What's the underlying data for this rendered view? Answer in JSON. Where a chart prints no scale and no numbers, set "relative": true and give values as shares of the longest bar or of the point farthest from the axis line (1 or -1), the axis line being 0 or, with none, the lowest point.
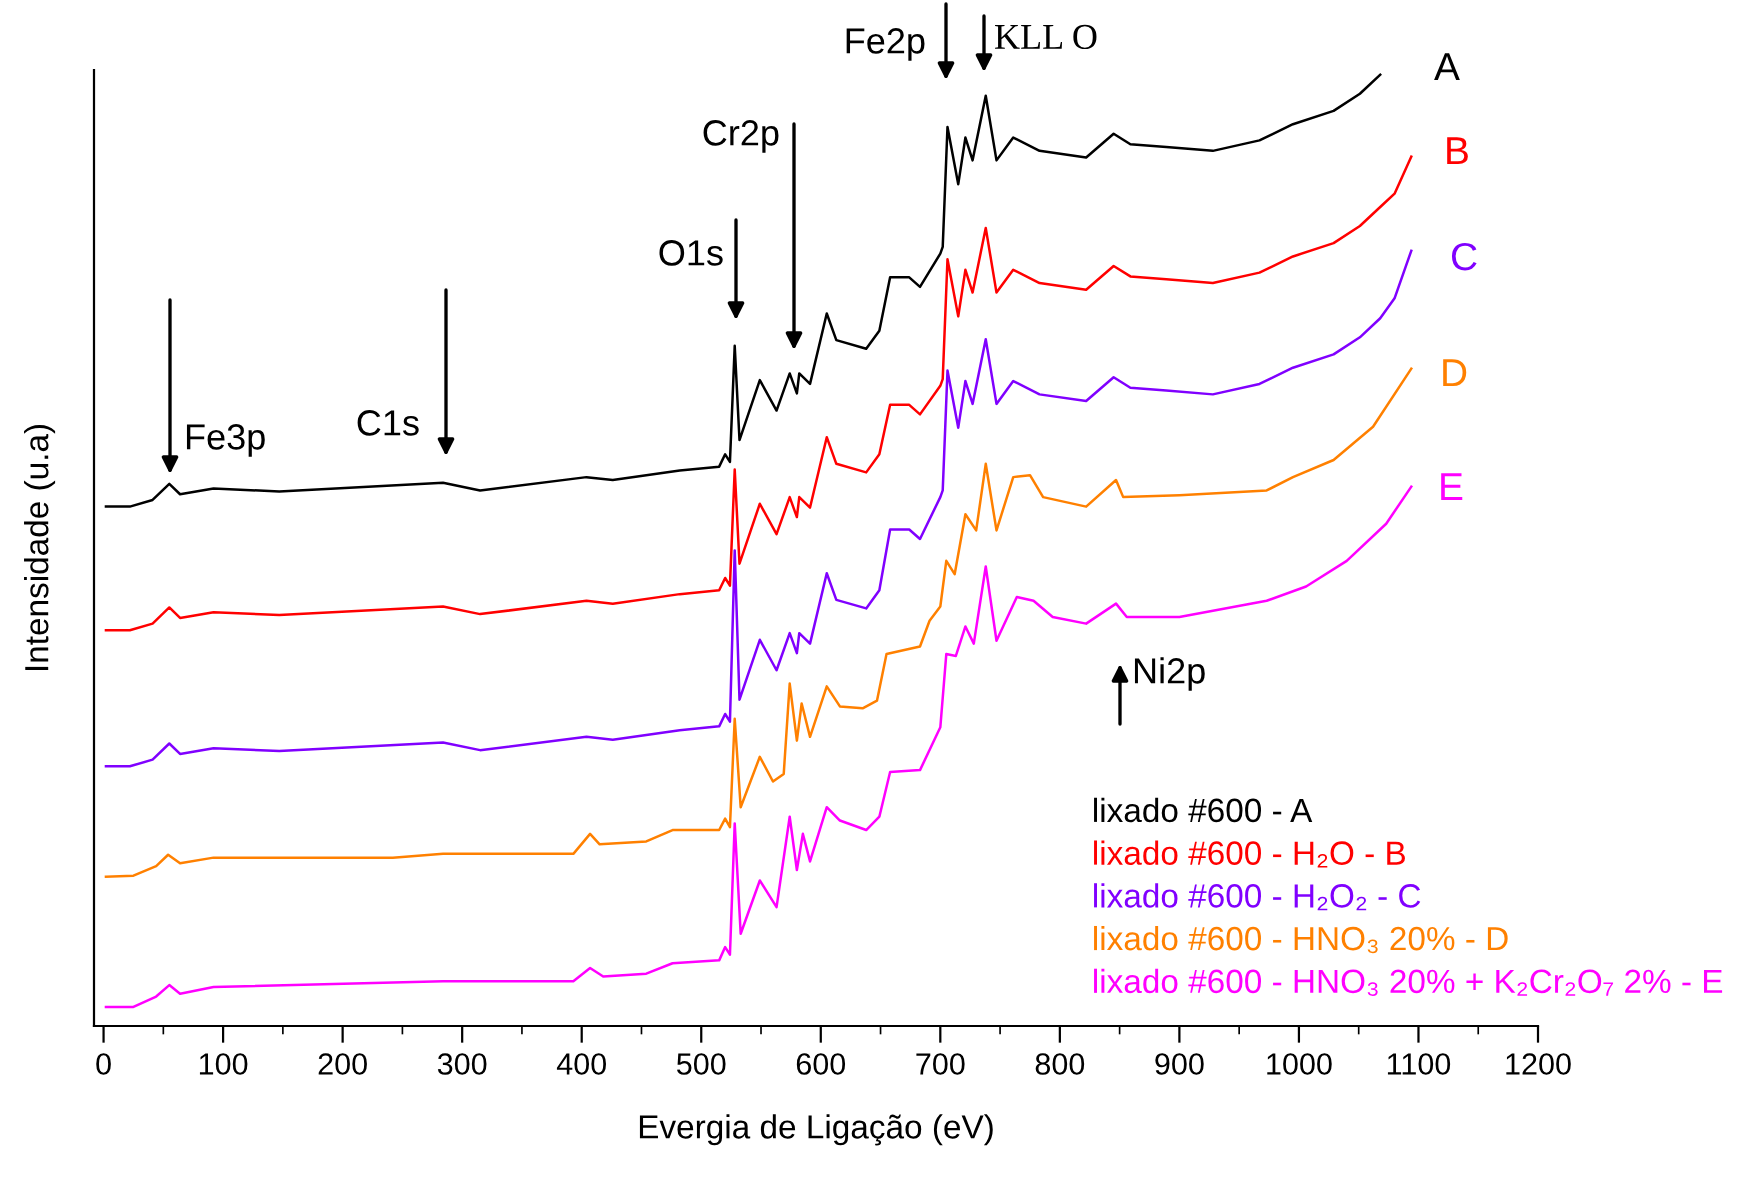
{
  "chart_data": {
    "type": "line",
    "relative": true,
    "xlabel": "Evergia de Ligação (eV)",
    "ylabel": "Intensidade (u.a)",
    "xlim": [
      -8,
      1200
    ],
    "xticks": [
      0,
      {
        "value": 50,
        "label": null
      },
      100,
      {
        "value": 150,
        "label": null
      },
      200,
      {
        "value": 250,
        "label": null
      },
      300,
      {
        "value": 350,
        "label": null
      },
      400,
      {
        "value": 450,
        "label": null
      },
      500,
      {
        "value": 550,
        "label": null
      },
      600,
      {
        "value": 650,
        "label": null
      },
      700,
      {
        "value": 750,
        "label": null
      },
      800,
      {
        "value": 850,
        "label": null
      },
      900,
      {
        "value": 950,
        "label": null
      },
      1000,
      {
        "value": 1050,
        "label": null
      },
      1100,
      {
        "value": 1150,
        "label": null
      },
      1200
    ],
    "grid": false,
    "legend": "bottom right",
    "marker": "none",
    "line_style": "solid",
    "series": [
      {
        "name": "lixado #600 - A",
        "color": "#000000",
        "x": [
          2,
          22,
          41,
          55,
          64,
          92,
          147,
          284,
          315,
          404,
          426,
          482,
          515,
          520,
          524,
          528,
          532,
          549,
          563,
          574,
          580,
          582,
          591,
          605,
          613,
          638,
          649,
          658,
          674,
          683,
          700,
          702,
          706,
          715,
          721,
          727,
          738,
          747,
          761,
          783,
          822,
          845,
          859,
          889,
          928,
          967,
          995,
          1029,
          1051,
          1068
        ],
        "values": [
          0.546,
          0.546,
          0.553,
          0.57,
          0.559,
          0.565,
          0.562,
          0.571,
          0.563,
          0.577,
          0.574,
          0.584,
          0.588,
          0.601,
          0.593,
          0.715,
          0.616,
          0.679,
          0.647,
          0.686,
          0.665,
          0.686,
          0.675,
          0.749,
          0.721,
          0.712,
          0.731,
          0.787,
          0.787,
          0.777,
          0.812,
          0.819,
          0.945,
          0.885,
          0.934,
          0.91,
          0.978,
          0.91,
          0.934,
          0.92,
          0.913,
          0.938,
          0.927,
          0.924,
          0.92,
          0.931,
          0.948,
          0.962,
          0.98,
          1.0
        ]
      },
      {
        "name": "lixado #600 - H₂O - B",
        "color": "#ff0000",
        "x": [
          2,
          22,
          41,
          55,
          64,
          92,
          147,
          284,
          315,
          404,
          426,
          482,
          515,
          520,
          524,
          528,
          532,
          549,
          563,
          574,
          580,
          582,
          591,
          605,
          613,
          638,
          649,
          658,
          674,
          683,
          700,
          702,
          706,
          715,
          721,
          727,
          738,
          747,
          761,
          783,
          822,
          845,
          859,
          889,
          928,
          967,
          995,
          1029,
          1051,
          1068,
          1080,
          1094
        ],
        "values": [
          0.416,
          0.416,
          0.423,
          0.44,
          0.429,
          0.435,
          0.432,
          0.441,
          0.433,
          0.447,
          0.444,
          0.454,
          0.458,
          0.471,
          0.463,
          0.585,
          0.486,
          0.549,
          0.517,
          0.556,
          0.535,
          0.556,
          0.545,
          0.619,
          0.591,
          0.582,
          0.601,
          0.653,
          0.653,
          0.643,
          0.673,
          0.68,
          0.806,
          0.746,
          0.795,
          0.771,
          0.839,
          0.771,
          0.795,
          0.781,
          0.774,
          0.799,
          0.788,
          0.785,
          0.781,
          0.792,
          0.809,
          0.823,
          0.841,
          0.861,
          0.875,
          0.914
        ]
      },
      {
        "name": "lixado #600 - H₂O₂ - C",
        "color": "#8000ff",
        "x": [
          2,
          22,
          41,
          55,
          64,
          92,
          147,
          284,
          315,
          404,
          426,
          482,
          515,
          520,
          524,
          528,
          532,
          549,
          563,
          574,
          580,
          582,
          591,
          605,
          613,
          638,
          649,
          658,
          674,
          683,
          700,
          702,
          706,
          715,
          721,
          727,
          738,
          747,
          761,
          783,
          822,
          845,
          859,
          889,
          928,
          967,
          995,
          1029,
          1051,
          1068,
          1080,
          1094
        ],
        "values": [
          0.273,
          0.273,
          0.28,
          0.297,
          0.286,
          0.292,
          0.289,
          0.298,
          0.29,
          0.304,
          0.301,
          0.311,
          0.315,
          0.328,
          0.32,
          0.5,
          0.343,
          0.406,
          0.374,
          0.413,
          0.392,
          0.413,
          0.402,
          0.476,
          0.448,
          0.439,
          0.458,
          0.522,
          0.522,
          0.512,
          0.556,
          0.563,
          0.689,
          0.629,
          0.678,
          0.654,
          0.722,
          0.654,
          0.678,
          0.664,
          0.657,
          0.682,
          0.671,
          0.668,
          0.664,
          0.675,
          0.692,
          0.706,
          0.724,
          0.744,
          0.765,
          0.815
        ]
      },
      {
        "name": "lixado #600 - HNO₃ 20% - D",
        "color": "#ff8000",
        "x": [
          2,
          25,
          44,
          54,
          64,
          92,
          242,
          284,
          393,
          407,
          415,
          454,
          476,
          515,
          520,
          524,
          528,
          533,
          549,
          560,
          569,
          574,
          580,
          584,
          591,
          605,
          616,
          635,
          647,
          655,
          683,
          691,
          700,
          705,
          712,
          721,
          730,
          738,
          747,
          761,
          775,
          786,
          822,
          847,
          853,
          900,
          973,
          995,
          1029,
          1062,
          1094
        ],
        "values": [
          0.157,
          0.158,
          0.168,
          0.18,
          0.171,
          0.177,
          0.177,
          0.181,
          0.181,
          0.202,
          0.191,
          0.194,
          0.206,
          0.206,
          0.218,
          0.209,
          0.323,
          0.23,
          0.283,
          0.257,
          0.265,
          0.36,
          0.3,
          0.339,
          0.304,
          0.357,
          0.336,
          0.334,
          0.342,
          0.391,
          0.399,
          0.426,
          0.441,
          0.489,
          0.475,
          0.538,
          0.521,
          0.591,
          0.521,
          0.577,
          0.579,
          0.556,
          0.546,
          0.574,
          0.556,
          0.558,
          0.563,
          0.577,
          0.595,
          0.63,
          0.691
        ]
      },
      {
        "name": "lixado #600 - HNO₃ 20% + K₂Cr₂O₇ 2% - E",
        "color": "#ff00ff",
        "x": [
          2,
          25,
          44,
          55,
          64,
          92,
          284,
          393,
          407,
          418,
          454,
          476,
          515,
          520,
          524,
          528,
          533,
          549,
          563,
          574,
          580,
          585,
          591,
          605,
          616,
          638,
          649,
          658,
          683,
          700,
          705,
          713,
          721,
          728,
          738,
          747,
          764,
          778,
          794,
          822,
          847,
          856,
          900,
          973,
          1006,
          1040,
          1073,
          1094
        ],
        "values": [
          0.02,
          0.02,
          0.031,
          0.043,
          0.034,
          0.041,
          0.047,
          0.047,
          0.061,
          0.052,
          0.055,
          0.066,
          0.069,
          0.083,
          0.075,
          0.213,
          0.097,
          0.153,
          0.125,
          0.22,
          0.164,
          0.202,
          0.173,
          0.23,
          0.216,
          0.206,
          0.22,
          0.267,
          0.269,
          0.314,
          0.391,
          0.389,
          0.42,
          0.402,
          0.483,
          0.405,
          0.451,
          0.447,
          0.43,
          0.423,
          0.444,
          0.43,
          0.43,
          0.447,
          0.462,
          0.489,
          0.528,
          0.567
        ]
      }
    ],
    "annotations": [
      "A",
      "B",
      "C",
      "D",
      "E",
      "Fe3p",
      "C1s",
      "O1s",
      "Cr2p",
      "Fe2p",
      "KLL O",
      "Ni2p"
    ]
  }
}
